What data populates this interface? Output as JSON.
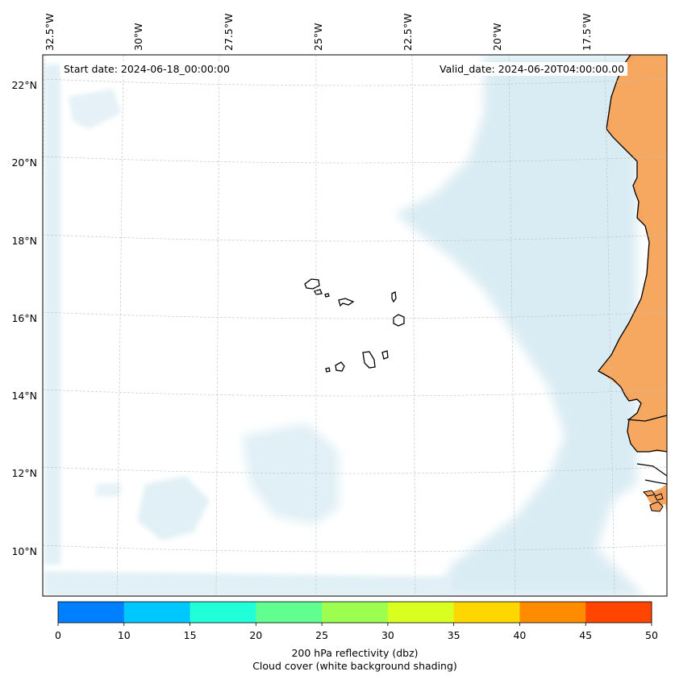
{
  "map": {
    "start_date_label": "Start date: 2024-06-18_00:00:00",
    "valid_date_label": "Valid_date: 2024-06-20T04:00:00.00",
    "longitude_labels": [
      "32.5°W",
      "30°W",
      "27.5°W",
      "25°W",
      "22.5°W",
      "20°W",
      "17.5°W"
    ],
    "latitude_labels": [
      "22°N",
      "20°N",
      "18°N",
      "16°N",
      "14°N",
      "12°N",
      "10°N"
    ],
    "region": "Cape Verde Islands and West African coast (Senegal, Mauritania)",
    "land_color": "#f4a460",
    "cloud_color": "#bcdde9",
    "coastline_color": "#000000"
  },
  "colorbar": {
    "ticks": [
      "0",
      "10",
      "15",
      "20",
      "25",
      "30",
      "35",
      "40",
      "45",
      "50"
    ],
    "colors": [
      "#0080ff",
      "#00c8ff",
      "#20ffd8",
      "#60ff90",
      "#9cff50",
      "#d8ff20",
      "#ffd700",
      "#ff8c00",
      "#ff4500"
    ],
    "label_line1": "200 hPa reflectivity (dbz)",
    "label_line2": "Cloud cover (white background shading)"
  }
}
